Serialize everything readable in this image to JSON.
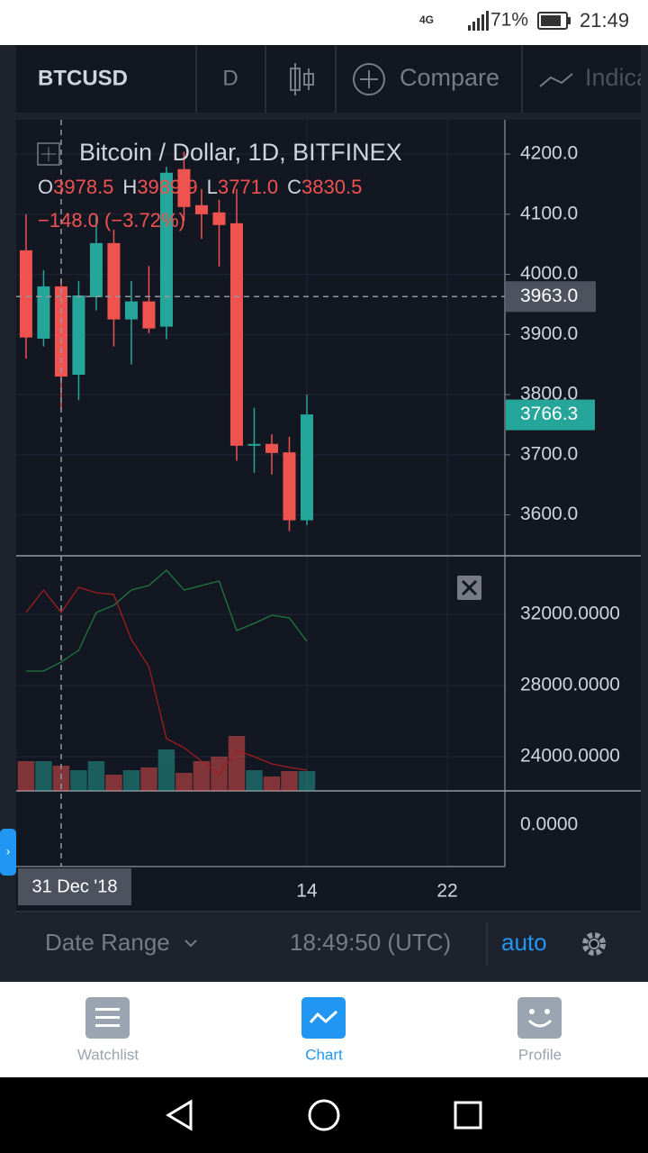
{
  "status_bar": {
    "network": "4G",
    "battery": "71%",
    "time": "21:49"
  },
  "toolbar": {
    "symbol": "BTCUSD",
    "interval": "D",
    "compare": "Compare",
    "indicators": "Indicators"
  },
  "chart": {
    "type": "candlestick",
    "title": "Bitcoin / Dollar, 1D, BITFINEX",
    "ohlc": [
      {
        "key": "O",
        "value": "3978.5"
      },
      {
        "key": "H",
        "value": "3989.9"
      },
      {
        "key": "L",
        "value": "3771.0"
      },
      {
        "key": "C",
        "value": "3830.5"
      }
    ],
    "change": "−148.0 (−3.72%)",
    "x": [
      -2,
      -1,
      0,
      1,
      2,
      3,
      4,
      5,
      6,
      7,
      8,
      9,
      10,
      11,
      12,
      13,
      14
    ],
    "open": [
      4040,
      3893,
      3980,
      3833,
      3962,
      4052,
      3925,
      3955,
      3913,
      4175,
      4115,
      4103,
      4085,
      3715,
      3718,
      3704,
      3591
    ],
    "high": [
      4100,
      4007,
      3992,
      3989,
      4097,
      4074,
      3989,
      4014,
      4179,
      4204,
      4142,
      4124,
      4142,
      3778,
      3734,
      3730,
      3800
    ],
    "low": [
      3860,
      3880,
      3775,
      3791,
      3940,
      3880,
      3850,
      3902,
      3892,
      4089,
      4059,
      4013,
      3690,
      3670,
      3667,
      3573,
      3583
    ],
    "close": [
      3895,
      3980,
      3830,
      3965,
      4052,
      3925,
      3955,
      3910,
      4169,
      4112,
      4100,
      4082,
      3715,
      3718,
      3703,
      3591,
      3767
    ],
    "up_color": "#26a69a",
    "down_color": "#ef5350",
    "ylim": [
      3532,
      4257
    ],
    "yticks": [
      {
        "value": 3600,
        "label": "3600.0"
      },
      {
        "value": 3700,
        "label": "3700.0"
      },
      {
        "value": 3800,
        "label": "3800.0"
      },
      {
        "value": 3900,
        "label": "3900.0"
      },
      {
        "value": 4000,
        "label": "4000.0"
      },
      {
        "value": 4100,
        "label": "4100.0"
      },
      {
        "value": 4200,
        "label": "4200.0"
      }
    ],
    "last_price": {
      "value": 3766.3,
      "label": "3766.3"
    },
    "crosshair_price": {
      "value": 3963,
      "label": "3963.0"
    },
    "xlim": [
      -2.56,
      25.28
    ],
    "xticks": [
      14,
      22
    ],
    "crosshair_x": {
      "value": 0,
      "label": "31 Dec '18"
    },
    "volume": [
      33,
      33,
      28,
      23,
      33,
      18,
      23,
      26,
      46,
      20,
      33,
      38,
      61,
      23,
      16,
      22,
      22
    ],
    "volume_lim": [
      0,
      261
    ],
    "indicator": {
      "ylim": [
        22082,
        35289
      ],
      "yticks": [
        {
          "value": 24000,
          "label": "24000.0000"
        },
        {
          "value": 28000,
          "label": "28000.0000"
        },
        {
          "value": 32000,
          "label": "32000.0000"
        }
      ],
      "series": [
        {
          "color": "#1e7a3e",
          "values": [
            28812,
            28812,
            29318,
            29976,
            32101,
            32506,
            33366,
            33619,
            34479,
            33366,
            33619,
            33872,
            31089,
            31494,
            31949,
            31798,
            30482
          ]
        },
        {
          "color": "#a31d1d",
          "values": [
            32101,
            33366,
            32101,
            33518,
            33214,
            33113,
            30583,
            29065,
            25017,
            24511,
            23752,
            22993,
            24359,
            24005,
            23600,
            23398,
            23246
          ]
        }
      ]
    },
    "oscillator_tick": "0.0000"
  },
  "footer": {
    "date_range": "Date Range",
    "time": "18:49:50 (UTC)",
    "auto": "auto"
  },
  "nav": {
    "items": [
      "Watchlist",
      "Chart",
      "Profile"
    ]
  }
}
